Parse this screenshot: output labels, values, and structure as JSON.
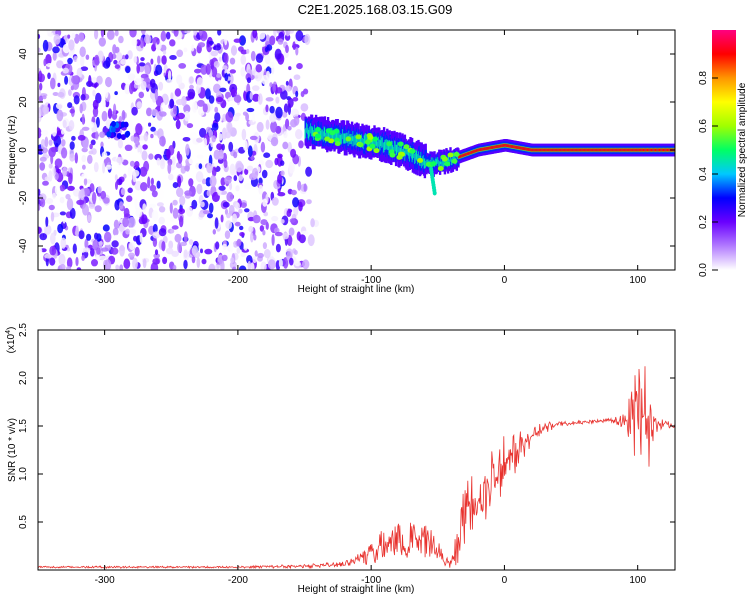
{
  "title": "C2E1.2025.168.03.15.G09",
  "colors": {
    "line": "#e8322e",
    "frame": "#000000",
    "background": "#ffffff"
  },
  "chart_data": [
    {
      "type": "heatmap",
      "xlabel": "Height of straight line (km)",
      "ylabel": "Frequency (Hz)",
      "xlim": [
        -350,
        128
      ],
      "ylim": [
        -50,
        50
      ],
      "xticks": [
        -300,
        -200,
        -100,
        0,
        100
      ],
      "xtick_labels": [
        "-300",
        "-200",
        "-100",
        "0",
        "100"
      ],
      "yticks": [
        -40,
        -20,
        0,
        20,
        40
      ],
      "ytick_labels": [
        "-40",
        "-20",
        "0",
        "20",
        "40"
      ],
      "noise_region_x": [
        -350,
        -140
      ],
      "ridge": {
        "x": [
          -150,
          -130,
          -110,
          -90,
          -70,
          -55,
          -48,
          -40,
          -30,
          -20,
          -10,
          0,
          20,
          50,
          80,
          100,
          128
        ],
        "y": [
          8,
          6,
          4,
          2,
          -2,
          -6,
          -5,
          -4,
          -2,
          0,
          1,
          2,
          0,
          0,
          0,
          0,
          0
        ]
      },
      "colorbar": {
        "label": "Normalized spectral amplitude",
        "range": [
          0,
          1
        ],
        "ticks": [
          0.0,
          0.2,
          0.4,
          0.6,
          0.8
        ],
        "tick_labels": [
          "0.0",
          "0.2",
          "0.4",
          "0.6",
          "0.8"
        ],
        "colormap": [
          "#ffffff",
          "#b27bff",
          "#6a00ff",
          "#0000ff",
          "#00c8ff",
          "#00ff64",
          "#a0ff00",
          "#ffff00",
          "#ff9600",
          "#ff0000",
          "#ff0080"
        ]
      }
    },
    {
      "type": "line",
      "xlabel": "Height of straight line (km)",
      "ylabel": "SNR (10 * v/v)",
      "y_multiplier": "(x10",
      "y_multiplier_exp": "4",
      "y_multiplier_close": ")",
      "xlim": [
        -350,
        128
      ],
      "ylim": [
        0,
        2.5
      ],
      "xticks": [
        -300,
        -200,
        -100,
        0,
        100
      ],
      "xtick_labels": [
        "-300",
        "-200",
        "-100",
        "0",
        "100"
      ],
      "yticks": [
        0.5,
        1.0,
        1.5,
        2.0,
        2.5
      ],
      "ytick_labels": [
        "0.5",
        "1.0",
        "1.5",
        "2.0",
        "2.5"
      ],
      "series": [
        {
          "x": [
            -350,
            -300,
            -250,
            -200,
            -150,
            -120,
            -110,
            -100,
            -90,
            -80,
            -70,
            -60,
            -50,
            -45,
            -40,
            -35,
            -30,
            -25,
            -20,
            -15,
            -10,
            -5,
            0,
            10,
            20,
            30,
            40,
            50,
            60,
            70,
            80,
            90,
            95,
            100,
            105,
            110,
            115,
            120,
            128
          ],
          "y": [
            0.03,
            0.03,
            0.03,
            0.03,
            0.04,
            0.06,
            0.1,
            0.2,
            0.28,
            0.3,
            0.32,
            0.33,
            0.22,
            0.1,
            0.06,
            0.3,
            0.6,
            0.75,
            0.8,
            0.85,
            0.95,
            1.05,
            1.15,
            1.25,
            1.38,
            1.48,
            1.52,
            1.53,
            1.54,
            1.55,
            1.56,
            1.55,
            1.56,
            1.6,
            1.6,
            1.55,
            1.52,
            1.52,
            1.5
          ],
          "noise": [
            0.01,
            0.01,
            0.01,
            0.01,
            0.02,
            0.03,
            0.08,
            0.15,
            0.18,
            0.2,
            0.2,
            0.2,
            0.15,
            0.05,
            0.05,
            0.25,
            0.35,
            0.35,
            0.35,
            0.35,
            0.35,
            0.35,
            0.3,
            0.25,
            0.12,
            0.06,
            0.03,
            0.02,
            0.02,
            0.02,
            0.02,
            0.08,
            0.3,
            0.55,
            0.85,
            0.4,
            0.08,
            0.04,
            0.03
          ]
        }
      ]
    }
  ]
}
